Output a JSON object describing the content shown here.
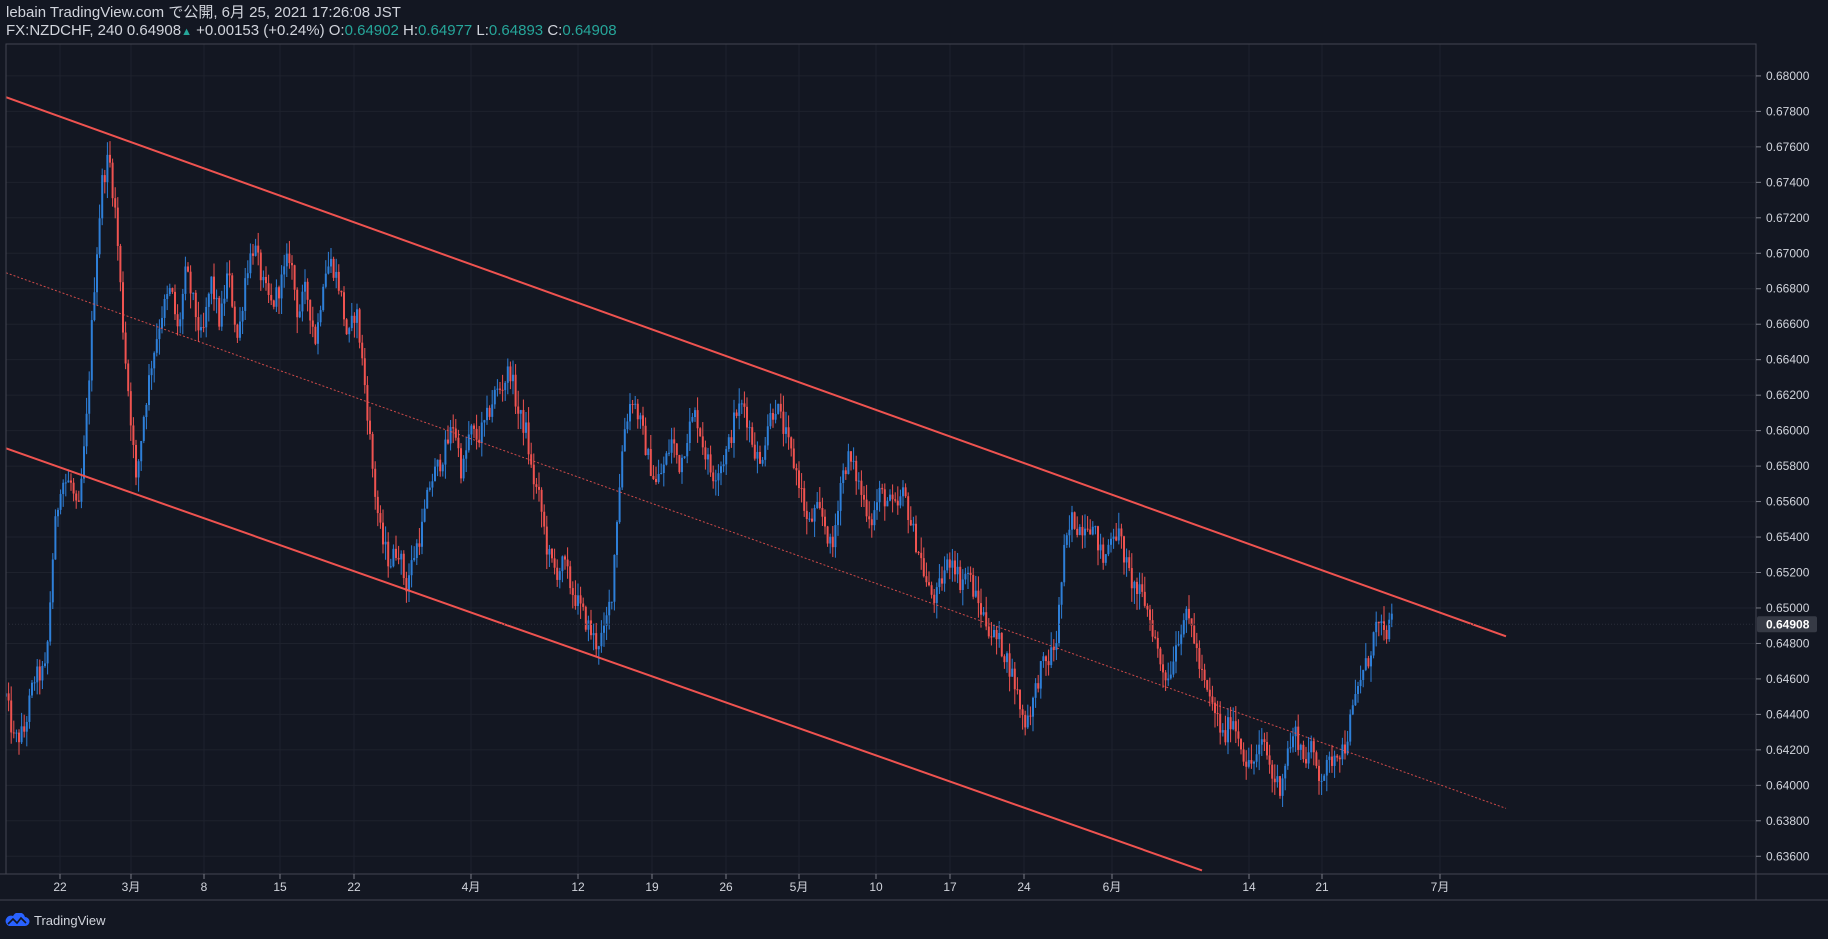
{
  "header": {
    "line1": "lebain TradingView.com で公開, 6月 25, 2021 17:26:08 JST",
    "symbol": "FX:NZDCHF, 240 0.64908",
    "change": "+0.00153 (+0.24%)",
    "o_label": "O:",
    "o_value": "0.64902",
    "h_label": "H:",
    "h_value": "0.64977",
    "l_label": "L:",
    "l_value": "0.64893",
    "c_label": "C:",
    "c_value": "0.64908"
  },
  "footer": {
    "brand": "TradingView"
  },
  "colors": {
    "up": "#2e7fd8",
    "down": "#ef5350",
    "channel": "#ef5350",
    "grid": "#1e222d",
    "text": "#d1d4dc",
    "background": "#131722"
  },
  "chart_data": {
    "type": "candlestick",
    "title": "FX:NZDCHF, 240",
    "ylim": [
      0.635,
      0.6818
    ],
    "y_ticks": [
      0.636,
      0.638,
      0.64,
      0.642,
      0.644,
      0.646,
      0.648,
      0.65,
      0.652,
      0.654,
      0.656,
      0.658,
      0.66,
      0.662,
      0.664,
      0.666,
      0.668,
      0.67,
      0.672,
      0.674,
      0.676,
      0.678,
      0.68
    ],
    "y_tick_labels": [
      "0.63600",
      "0.63800",
      "0.64000",
      "0.64200",
      "0.64400",
      "0.64600",
      "0.64800",
      "0.65000",
      "0.65200",
      "0.65400",
      "0.65600",
      "0.65800",
      "0.66000",
      "0.66200",
      "0.66400",
      "0.66600",
      "0.66800",
      "0.67000",
      "0.67200",
      "0.67400",
      "0.67600",
      "0.67800",
      "0.68000"
    ],
    "last_price": 0.64908,
    "last_price_label": "0.64908",
    "x_ticks": [
      {
        "label": "22",
        "t": 54
      },
      {
        "label": "3月",
        "t": 125
      },
      {
        "label": "8",
        "t": 198
      },
      {
        "label": "15",
        "t": 274
      },
      {
        "label": "22",
        "t": 348
      },
      {
        "label": "4月",
        "t": 465
      },
      {
        "label": "12",
        "t": 572
      },
      {
        "label": "19",
        "t": 646
      },
      {
        "label": "26",
        "t": 720
      },
      {
        "label": "5月",
        "t": 793
      },
      {
        "label": "10",
        "t": 870
      },
      {
        "label": "17",
        "t": 944
      },
      {
        "label": "24",
        "t": 1018
      },
      {
        "label": "6月",
        "t": 1106
      },
      {
        "label": "14",
        "t": 1243
      },
      {
        "label": "21",
        "t": 1316
      },
      {
        "label": "7月",
        "t": 1434
      }
    ],
    "price_path": [
      [
        0,
        0.645
      ],
      [
        8,
        0.6425
      ],
      [
        18,
        0.643
      ],
      [
        28,
        0.646
      ],
      [
        40,
        0.6465
      ],
      [
        48,
        0.654
      ],
      [
        55,
        0.6572
      ],
      [
        65,
        0.657
      ],
      [
        72,
        0.655
      ],
      [
        80,
        0.66
      ],
      [
        88,
        0.668
      ],
      [
        96,
        0.674
      ],
      [
        103,
        0.6755
      ],
      [
        110,
        0.672
      ],
      [
        118,
        0.665
      ],
      [
        126,
        0.66
      ],
      [
        130,
        0.657
      ],
      [
        138,
        0.661
      ],
      [
        146,
        0.664
      ],
      [
        155,
        0.6665
      ],
      [
        165,
        0.668
      ],
      [
        172,
        0.6655
      ],
      [
        180,
        0.669
      ],
      [
        188,
        0.667
      ],
      [
        196,
        0.665
      ],
      [
        205,
        0.6685
      ],
      [
        214,
        0.666
      ],
      [
        222,
        0.669
      ],
      [
        232,
        0.665
      ],
      [
        240,
        0.669
      ],
      [
        248,
        0.6705
      ],
      [
        258,
        0.668
      ],
      [
        266,
        0.667
      ],
      [
        276,
        0.6685
      ],
      [
        284,
        0.67
      ],
      [
        292,
        0.6665
      ],
      [
        300,
        0.668
      ],
      [
        310,
        0.665
      ],
      [
        318,
        0.669
      ],
      [
        326,
        0.6695
      ],
      [
        334,
        0.668
      ],
      [
        342,
        0.665
      ],
      [
        350,
        0.667
      ],
      [
        360,
        0.662
      ],
      [
        368,
        0.657
      ],
      [
        375,
        0.654
      ],
      [
        384,
        0.6525
      ],
      [
        392,
        0.6535
      ],
      [
        400,
        0.6512
      ],
      [
        408,
        0.653
      ],
      [
        416,
        0.6545
      ],
      [
        424,
        0.657
      ],
      [
        432,
        0.658
      ],
      [
        440,
        0.659
      ],
      [
        448,
        0.6605
      ],
      [
        456,
        0.6575
      ],
      [
        464,
        0.66
      ],
      [
        472,
        0.6595
      ],
      [
        480,
        0.6605
      ],
      [
        488,
        0.662
      ],
      [
        496,
        0.6625
      ],
      [
        504,
        0.6635
      ],
      [
        512,
        0.661
      ],
      [
        520,
        0.66
      ],
      [
        526,
        0.6575
      ],
      [
        534,
        0.656
      ],
      [
        542,
        0.653
      ],
      [
        550,
        0.652
      ],
      [
        558,
        0.6525
      ],
      [
        566,
        0.651
      ],
      [
        574,
        0.65
      ],
      [
        582,
        0.649
      ],
      [
        590,
        0.648
      ],
      [
        598,
        0.6485
      ],
      [
        606,
        0.651
      ],
      [
        612,
        0.656
      ],
      [
        618,
        0.66
      ],
      [
        626,
        0.662
      ],
      [
        634,
        0.6605
      ],
      [
        642,
        0.6585
      ],
      [
        650,
        0.657
      ],
      [
        658,
        0.658
      ],
      [
        666,
        0.6595
      ],
      [
        674,
        0.658
      ],
      [
        682,
        0.66
      ],
      [
        690,
        0.661
      ],
      [
        698,
        0.659
      ],
      [
        706,
        0.6575
      ],
      [
        714,
        0.658
      ],
      [
        722,
        0.659
      ],
      [
        730,
        0.661
      ],
      [
        738,
        0.6615
      ],
      [
        746,
        0.6595
      ],
      [
        754,
        0.658
      ],
      [
        762,
        0.6605
      ],
      [
        770,
        0.6615
      ],
      [
        778,
        0.66
      ],
      [
        786,
        0.6585
      ],
      [
        794,
        0.657
      ],
      [
        802,
        0.6545
      ],
      [
        810,
        0.6555
      ],
      [
        818,
        0.655
      ],
      [
        826,
        0.653
      ],
      [
        834,
        0.657
      ],
      [
        842,
        0.6585
      ],
      [
        850,
        0.6575
      ],
      [
        858,
        0.656
      ],
      [
        866,
        0.655
      ],
      [
        874,
        0.6565
      ],
      [
        882,
        0.656
      ],
      [
        890,
        0.6555
      ],
      [
        898,
        0.6565
      ],
      [
        906,
        0.6545
      ],
      [
        914,
        0.653
      ],
      [
        922,
        0.651
      ],
      [
        930,
        0.6505
      ],
      [
        938,
        0.652
      ],
      [
        946,
        0.653
      ],
      [
        954,
        0.6515
      ],
      [
        962,
        0.652
      ],
      [
        970,
        0.6505
      ],
      [
        978,
        0.6495
      ],
      [
        986,
        0.6485
      ],
      [
        994,
        0.648
      ],
      [
        1002,
        0.647
      ],
      [
        1010,
        0.6455
      ],
      [
        1018,
        0.6435
      ],
      [
        1026,
        0.6445
      ],
      [
        1034,
        0.6465
      ],
      [
        1042,
        0.647
      ],
      [
        1050,
        0.648
      ],
      [
        1058,
        0.653
      ],
      [
        1066,
        0.655
      ],
      [
        1074,
        0.6545
      ],
      [
        1082,
        0.655
      ],
      [
        1090,
        0.654
      ],
      [
        1098,
        0.6525
      ],
      [
        1106,
        0.6545
      ],
      [
        1114,
        0.654
      ],
      [
        1122,
        0.652
      ],
      [
        1130,
        0.651
      ],
      [
        1138,
        0.6505
      ],
      [
        1146,
        0.649
      ],
      [
        1154,
        0.647
      ],
      [
        1162,
        0.646
      ],
      [
        1170,
        0.648
      ],
      [
        1178,
        0.6495
      ],
      [
        1186,
        0.649
      ],
      [
        1194,
        0.6465
      ],
      [
        1202,
        0.645
      ],
      [
        1210,
        0.644
      ],
      [
        1218,
        0.6425
      ],
      [
        1226,
        0.644
      ],
      [
        1234,
        0.6425
      ],
      [
        1242,
        0.641
      ],
      [
        1250,
        0.6415
      ],
      [
        1258,
        0.6425
      ],
      [
        1266,
        0.6405
      ],
      [
        1274,
        0.64
      ],
      [
        1282,
        0.642
      ],
      [
        1290,
        0.643
      ],
      [
        1298,
        0.6415
      ],
      [
        1306,
        0.642
      ],
      [
        1314,
        0.6405
      ],
      [
        1322,
        0.641
      ],
      [
        1330,
        0.642
      ],
      [
        1338,
        0.642
      ],
      [
        1346,
        0.644
      ],
      [
        1354,
        0.646
      ],
      [
        1362,
        0.647
      ],
      [
        1370,
        0.649
      ],
      [
        1378,
        0.6485
      ],
      [
        1386,
        0.6491
      ]
    ],
    "channel_upper": [
      [
        0,
        0.6788
      ],
      [
        1500,
        0.6484
      ]
    ],
    "channel_lower": [
      [
        0,
        0.659
      ],
      [
        1196,
        0.6352
      ]
    ],
    "channel_mid": [
      [
        0,
        0.6689
      ],
      [
        1500,
        0.6387
      ]
    ]
  }
}
